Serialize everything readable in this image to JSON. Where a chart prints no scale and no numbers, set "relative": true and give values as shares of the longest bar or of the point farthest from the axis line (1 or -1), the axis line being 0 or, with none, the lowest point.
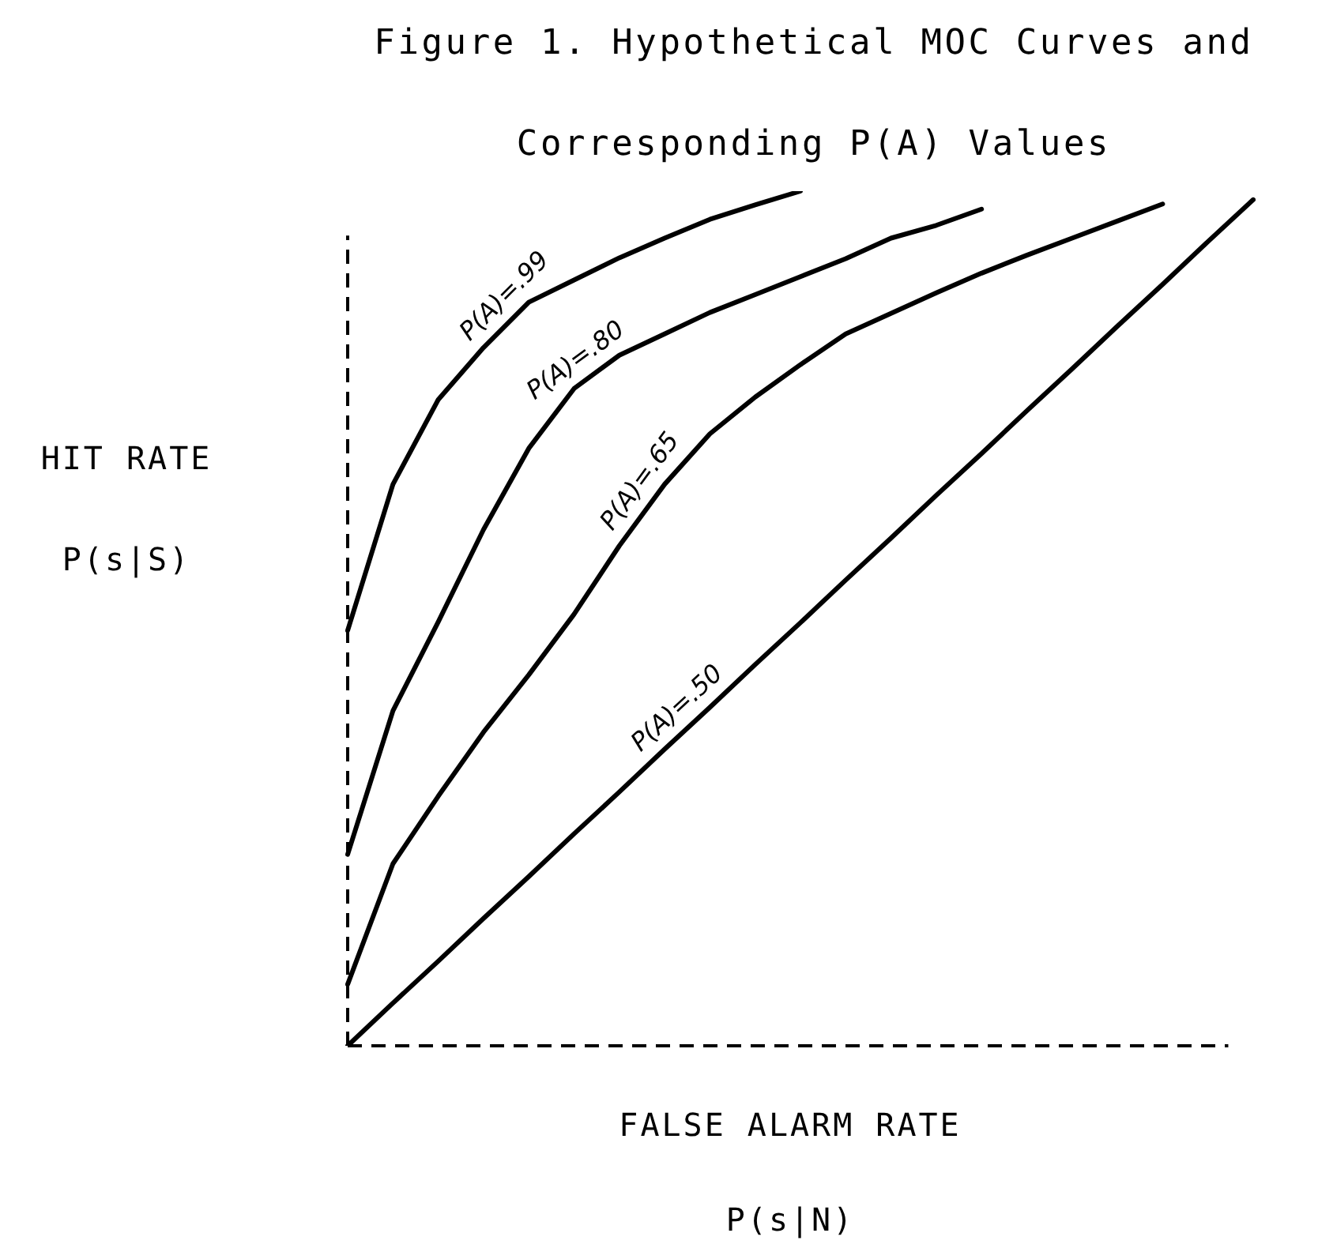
{
  "chart_data": {
    "type": "line",
    "title": "Figure 1.  Hypothetical MOC Curves and Corresponding P(A) Values",
    "xlabel": "FALSE ALARM RATE\nP(s|N)",
    "ylabel": "HIT RATE\nP(s|S)",
    "relative": true,
    "marker": "none",
    "line_style": "solid",
    "categories": [
      null,
      null,
      null,
      null,
      null,
      null,
      null,
      null,
      null,
      null,
      null,
      null,
      null,
      null,
      null,
      null,
      null,
      null,
      null,
      null,
      null
    ],
    "series": [
      {
        "name": "P(A)=.99",
        "color": "#000000",
        "values": [
          0.486,
          0.657,
          0.756,
          0.817,
          0.87,
          0.896,
          0.922,
          0.945,
          0.967,
          0.984,
          1,
          null,
          null,
          null,
          null,
          null,
          null,
          null,
          null,
          null,
          null
        ]
      },
      {
        "name": "P(A)=.80",
        "color": "#000000",
        "values": [
          0.224,
          0.392,
          0.496,
          0.604,
          0.699,
          0.769,
          0.808,
          0.833,
          0.858,
          0.879,
          0.9,
          0.921,
          0.945,
          0.96,
          0.979,
          null,
          null,
          null,
          null,
          null,
          null
        ]
      },
      {
        "name": "P(A)=.65",
        "color": "#000000",
        "values": [
          0.072,
          0.213,
          0.292,
          0.367,
          0.434,
          0.505,
          0.585,
          0.657,
          0.716,
          0.759,
          0.797,
          0.833,
          0.857,
          0.881,
          0.904,
          0.925,
          0.945,
          0.965,
          0.985,
          null,
          null
        ]
      },
      {
        "name": "P(A)=.50",
        "color": "#000000",
        "values": [
          0,
          0.05,
          0.099,
          0.149,
          0.198,
          0.248,
          0.297,
          0.347,
          0.396,
          0.446,
          0.495,
          0.545,
          0.594,
          0.644,
          0.693,
          0.743,
          0.792,
          0.842,
          0.891,
          0.941,
          0.99
        ]
      }
    ]
  }
}
